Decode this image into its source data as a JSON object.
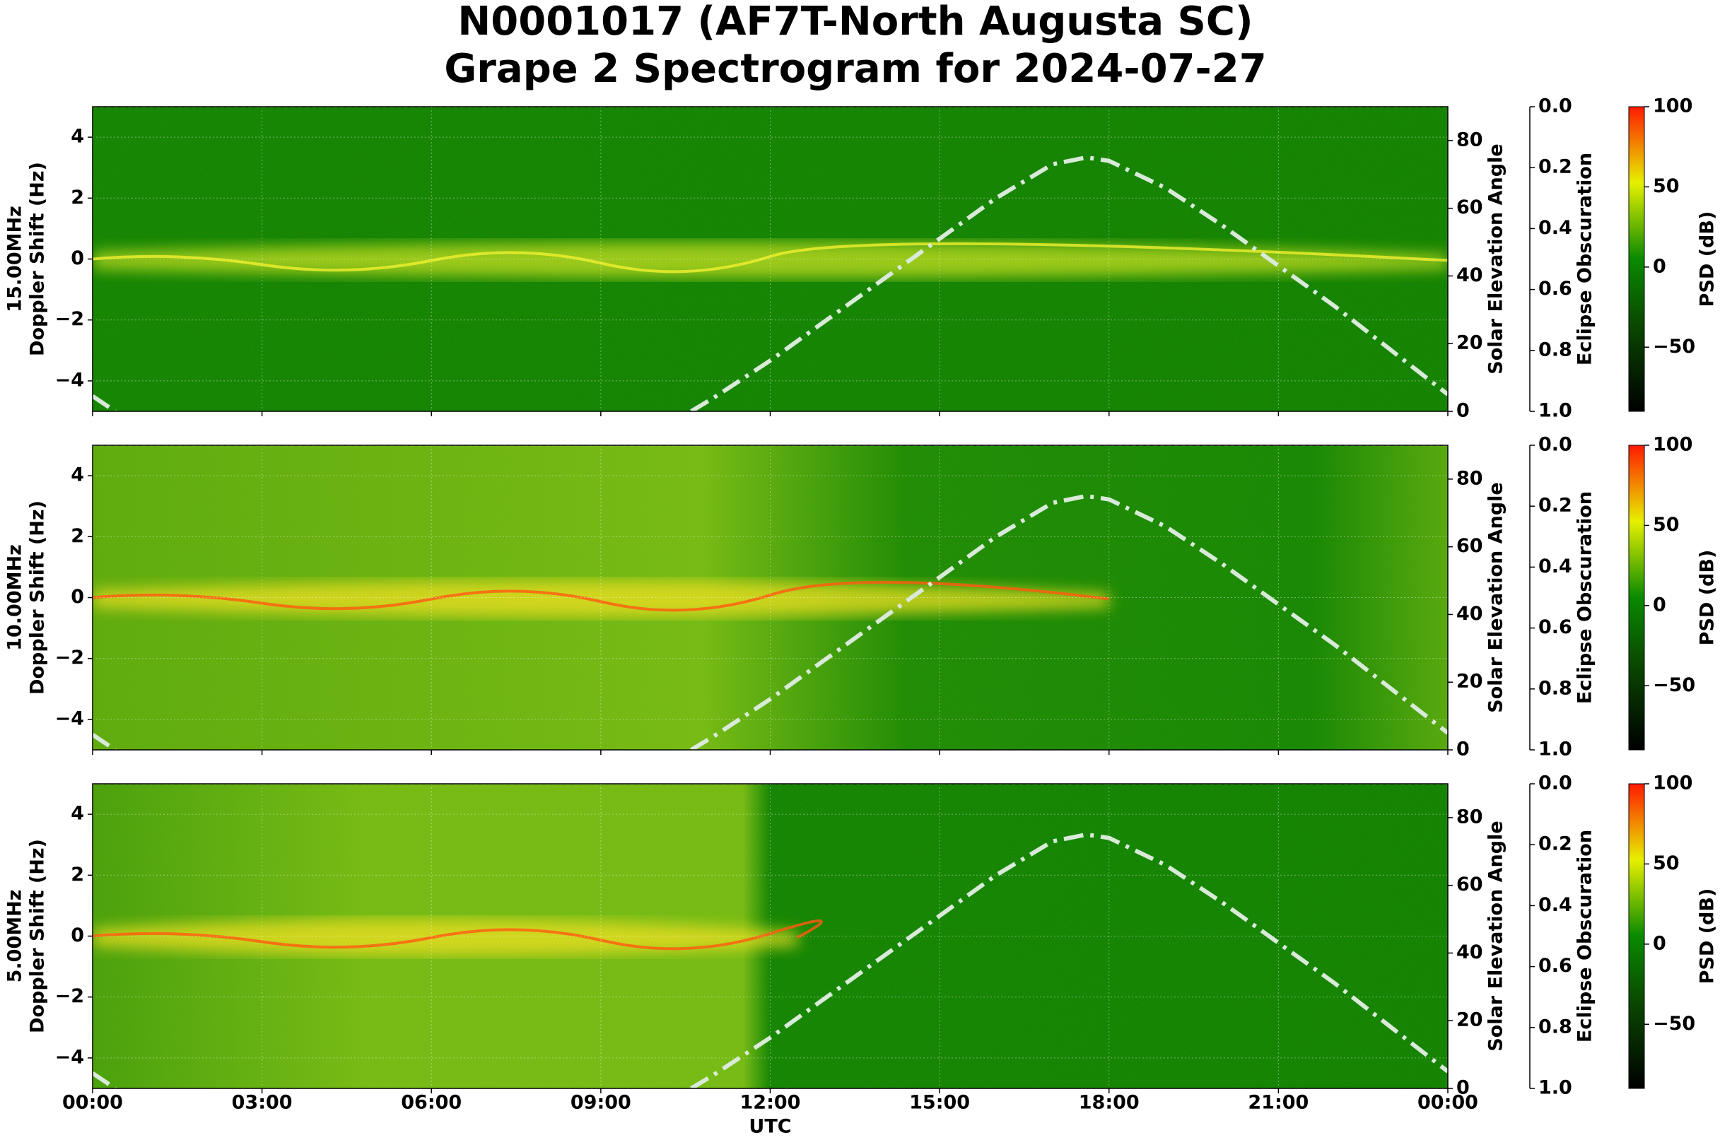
{
  "title": [
    "N0001017 (AF7T-North Augusta SC)",
    "Grape 2 Spectrogram for 2024-07-27"
  ],
  "x_axis": {
    "xlim": [
      0,
      24
    ],
    "xlabel": "UTC",
    "xticks": [
      {
        "value": 0,
        "label": "00:00"
      },
      {
        "value": 3,
        "label": "03:00"
      },
      {
        "value": 6,
        "label": "06:00"
      },
      {
        "value": 9,
        "label": "09:00"
      },
      {
        "value": 12,
        "label": "12:00"
      },
      {
        "value": 15,
        "label": "15:00"
      },
      {
        "value": 18,
        "label": "18:00"
      },
      {
        "value": 21,
        "label": "21:00"
      },
      {
        "value": 24,
        "label": "00:00"
      }
    ]
  },
  "solar_elevation": {
    "name": "Solar Elevation Angle",
    "color": "#d9ead9",
    "x": [
      0,
      0.4,
      5,
      10.6,
      11,
      12,
      13,
      14,
      15,
      16,
      17,
      17.6,
      18,
      19,
      20,
      21,
      22,
      23,
      24
    ],
    "values": [
      4.5,
      0,
      null,
      0,
      4,
      15,
      27,
      39,
      51,
      63,
      73,
      75,
      74,
      66,
      55,
      43,
      31,
      18,
      5
    ]
  },
  "eclipse": {
    "name": "Eclipse Obscuration",
    "color": "#cccccc",
    "x": [
      0,
      24
    ],
    "values": [
      0,
      0
    ]
  },
  "chart_data": [
    {
      "type": "spectrogram",
      "frequency": "15.00MHz",
      "ylabel": "Doppler Shift (Hz)",
      "y2label": "Solar Elevation Angle",
      "y3label": "Eclipse Obscuration",
      "clabel": "PSD (dB)",
      "ylim": [
        -5,
        5
      ],
      "yticks": [
        {
          "value": -4,
          "label": "−4"
        },
        {
          "value": -2,
          "label": "−2"
        },
        0,
        2,
        4
      ],
      "y2lim": [
        0,
        90
      ],
      "y2ticks": [
        0,
        20,
        40,
        60,
        80
      ],
      "y3lim": [
        0,
        1
      ],
      "y3_inverted": true,
      "y3ticks": [
        {
          "value": 0,
          "label": "0.0"
        },
        {
          "value": 0.2,
          "label": "0.2"
        },
        {
          "value": 0.4,
          "label": "0.4"
        },
        {
          "value": 0.6,
          "label": "0.6"
        },
        {
          "value": 0.8,
          "label": "0.8"
        },
        {
          "value": 1,
          "label": "1.0"
        }
      ],
      "clim": [
        -90,
        100
      ],
      "cticks": [
        {
          "value": -50,
          "label": "−50"
        },
        0,
        50,
        100
      ],
      "grid": true
    },
    {
      "type": "spectrogram",
      "frequency": "10.00MHz",
      "ylabel": "Doppler Shift (Hz)",
      "y2label": "Solar Elevation Angle",
      "y3label": "Eclipse Obscuration",
      "clabel": "PSD (dB)",
      "ylim": [
        -5,
        5
      ],
      "yticks": [
        {
          "value": -4,
          "label": "−4"
        },
        {
          "value": -2,
          "label": "−2"
        },
        0,
        2,
        4
      ],
      "y2lim": [
        0,
        90
      ],
      "y2ticks": [
        0,
        20,
        40,
        60,
        80
      ],
      "y3lim": [
        0,
        1
      ],
      "y3_inverted": true,
      "y3ticks": [
        {
          "value": 0,
          "label": "0.0"
        },
        {
          "value": 0.2,
          "label": "0.2"
        },
        {
          "value": 0.4,
          "label": "0.4"
        },
        {
          "value": 0.6,
          "label": "0.6"
        },
        {
          "value": 0.8,
          "label": "0.8"
        },
        {
          "value": 1,
          "label": "1.0"
        }
      ],
      "clim": [
        -90,
        100
      ],
      "cticks": [
        {
          "value": -50,
          "label": "−50"
        },
        0,
        50,
        100
      ],
      "grid": true
    },
    {
      "type": "spectrogram",
      "frequency": "5.00MHz",
      "ylabel": "Doppler Shift (Hz)",
      "y2label": "Solar Elevation Angle",
      "y3label": "Eclipse Obscuration",
      "clabel": "PSD (dB)",
      "ylim": [
        -5,
        5
      ],
      "yticks": [
        {
          "value": -4,
          "label": "−4"
        },
        {
          "value": -2,
          "label": "−2"
        },
        0,
        2,
        4
      ],
      "y2lim": [
        0,
        90
      ],
      "y2ticks": [
        0,
        20,
        40,
        60,
        80
      ],
      "y3lim": [
        0,
        1
      ],
      "y3_inverted": true,
      "y3ticks": [
        {
          "value": 0,
          "label": "0.0"
        },
        {
          "value": 0.2,
          "label": "0.2"
        },
        {
          "value": 0.4,
          "label": "0.4"
        },
        {
          "value": 0.6,
          "label": "0.6"
        },
        {
          "value": 0.8,
          "label": "0.8"
        },
        {
          "value": 1,
          "label": "1.0"
        }
      ],
      "clim": [
        -90,
        100
      ],
      "cticks": [
        {
          "value": -50,
          "label": "−50"
        },
        0,
        50,
        100
      ],
      "grid": true
    }
  ]
}
